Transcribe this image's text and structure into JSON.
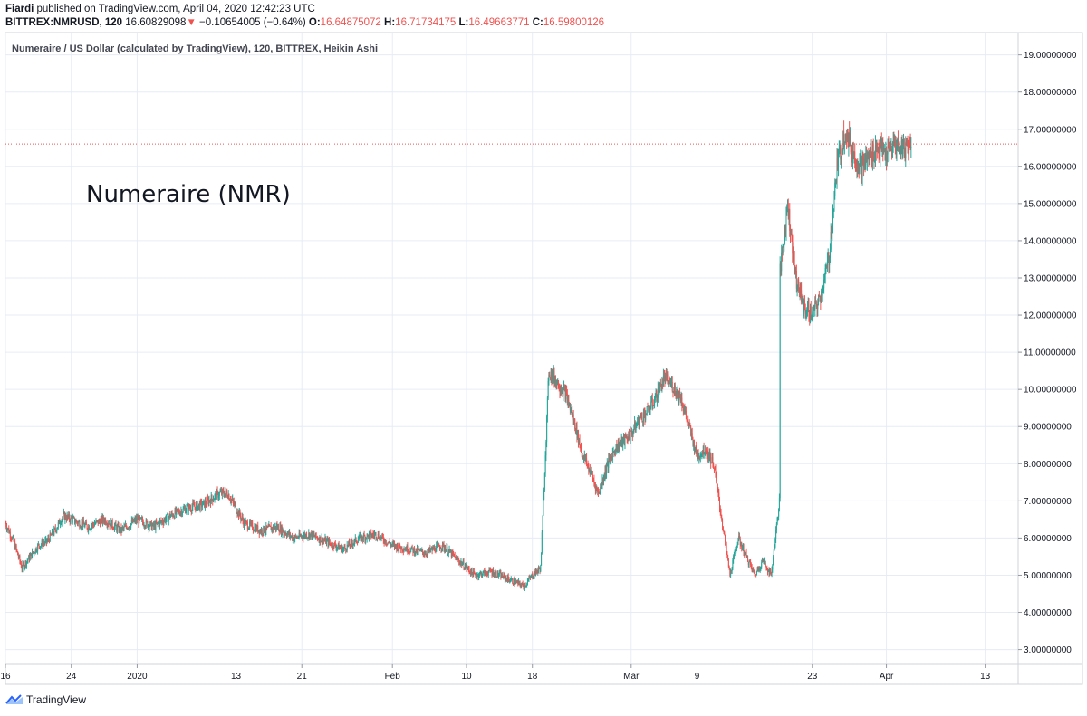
{
  "header": {
    "author": "Fiardi",
    "published": "published on TradingView.com, April 04, 2020 12:42:23 UTC",
    "symbol": "BITTREX:NMRUSD, 120",
    "last": "16.60829098",
    "change_arrow": "▼",
    "change": "−0.10654005 (−0.64%)",
    "o_label": "O:",
    "o_value": "16.64875072",
    "h_label": "H:",
    "h_value": "16.71734175",
    "l_label": "L:",
    "l_value": "16.49663771",
    "c_label": "C:",
    "c_value": "16.59800126"
  },
  "footer": {
    "brand": "TradingView",
    "logo_icon": "tradingview-logo-icon"
  },
  "colors": {
    "up": "#26a69a",
    "down": "#ef5350",
    "grid": "#e6ecf5",
    "priceline": "#ef5350"
  },
  "chart_data": {
    "type": "candlestick",
    "title": "Numeraire / US Dollar (calculated by TradingView), 120, BITTREX, Heikin Ashi",
    "annotation": "Numeraire (NMR)",
    "y_axis_position": "right",
    "ylim": [
      2.6,
      19.6
    ],
    "y_ticks": [
      {
        "label": "19.00000000",
        "value": 19
      },
      {
        "label": "18.00000000",
        "value": 18
      },
      {
        "label": "17.00000000",
        "value": 17
      },
      {
        "label": "16.00000000",
        "value": 16
      },
      {
        "label": "15.00000000",
        "value": 15
      },
      {
        "label": "14.00000000",
        "value": 14
      },
      {
        "label": "13.00000000",
        "value": 13
      },
      {
        "label": "12.00000000",
        "value": 12
      },
      {
        "label": "11.00000000",
        "value": 11
      },
      {
        "label": "10.00000000",
        "value": 10
      },
      {
        "label": "9.00000000",
        "value": 9
      },
      {
        "label": "8.00000000",
        "value": 8
      },
      {
        "label": "7.00000000",
        "value": 7
      },
      {
        "label": "6.00000000",
        "value": 6
      },
      {
        "label": "5.00000000",
        "value": 5
      },
      {
        "label": "4.00000000",
        "value": 4
      },
      {
        "label": "3.00000000",
        "value": 3
      }
    ],
    "x_ticks": [
      {
        "label": "16",
        "date": "2019-12-16"
      },
      {
        "label": "24",
        "date": "2019-12-24"
      },
      {
        "label": "2020",
        "date": "2020-01-01"
      },
      {
        "label": "13",
        "date": "2020-01-13"
      },
      {
        "label": "21",
        "date": "2020-01-21"
      },
      {
        "label": "Feb",
        "date": "2020-02-01"
      },
      {
        "label": "10",
        "date": "2020-02-10"
      },
      {
        "label": "18",
        "date": "2020-02-18"
      },
      {
        "label": "Mar",
        "date": "2020-03-01"
      },
      {
        "label": "9",
        "date": "2020-03-09"
      },
      {
        "label": "23",
        "date": "2020-03-23"
      },
      {
        "label": "Apr",
        "date": "2020-04-01"
      },
      {
        "label": "13",
        "date": "2020-04-13"
      }
    ],
    "x_range": [
      "2019-12-16",
      "2020-04-17"
    ],
    "grid": true,
    "last_price": 16.6,
    "close_path": [
      [
        "2019-12-16",
        6.4
      ],
      [
        "2019-12-17",
        5.9
      ],
      [
        "2019-12-18",
        5.2
      ],
      [
        "2019-12-19",
        5.5
      ],
      [
        "2019-12-20",
        5.8
      ],
      [
        "2019-12-21",
        5.9
      ],
      [
        "2019-12-22",
        6.2
      ],
      [
        "2019-12-23",
        6.6
      ],
      [
        "2019-12-24",
        6.5
      ],
      [
        "2019-12-26",
        6.3
      ],
      [
        "2019-12-28",
        6.5
      ],
      [
        "2019-12-30",
        6.2
      ],
      [
        "2020-01-01",
        6.5
      ],
      [
        "2020-01-03",
        6.3
      ],
      [
        "2020-01-05",
        6.6
      ],
      [
        "2020-01-07",
        6.8
      ],
      [
        "2020-01-09",
        6.9
      ],
      [
        "2020-01-11",
        7.2
      ],
      [
        "2020-01-12",
        7.2
      ],
      [
        "2020-01-14",
        6.4
      ],
      [
        "2020-01-16",
        6.2
      ],
      [
        "2020-01-18",
        6.3
      ],
      [
        "2020-01-20",
        6.0
      ],
      [
        "2020-01-22",
        6.1
      ],
      [
        "2020-01-24",
        5.9
      ],
      [
        "2020-01-26",
        5.7
      ],
      [
        "2020-01-28",
        6.0
      ],
      [
        "2020-01-30",
        6.1
      ],
      [
        "2020-02-01",
        5.8
      ],
      [
        "2020-02-03",
        5.7
      ],
      [
        "2020-02-05",
        5.6
      ],
      [
        "2020-02-07",
        5.8
      ],
      [
        "2020-02-09",
        5.4
      ],
      [
        "2020-02-11",
        5.0
      ],
      [
        "2020-02-13",
        5.1
      ],
      [
        "2020-02-15",
        4.9
      ],
      [
        "2020-02-17",
        4.7
      ],
      [
        "2020-02-18",
        5.0
      ],
      [
        "2020-02-19",
        5.2
      ],
      [
        "2020-02-20",
        10.5
      ],
      [
        "2020-02-21",
        10.2
      ],
      [
        "2020-02-22",
        9.9
      ],
      [
        "2020-02-23",
        9.2
      ],
      [
        "2020-02-24",
        8.3
      ],
      [
        "2020-02-25",
        7.8
      ],
      [
        "2020-02-26",
        7.2
      ],
      [
        "2020-02-27",
        7.9
      ],
      [
        "2020-02-28",
        8.4
      ],
      [
        "2020-03-01",
        8.8
      ],
      [
        "2020-03-02",
        9.2
      ],
      [
        "2020-03-03",
        9.4
      ],
      [
        "2020-03-04",
        9.8
      ],
      [
        "2020-03-05",
        10.3
      ],
      [
        "2020-03-06",
        10.1
      ],
      [
        "2020-03-07",
        9.8
      ],
      [
        "2020-03-08",
        9.0
      ],
      [
        "2020-03-09",
        8.2
      ],
      [
        "2020-03-10",
        8.4
      ],
      [
        "2020-03-11",
        8.0
      ],
      [
        "2020-03-12",
        6.5
      ],
      [
        "2020-03-13",
        5.0
      ],
      [
        "2020-03-14",
        6.0
      ],
      [
        "2020-03-15",
        5.5
      ],
      [
        "2020-03-16",
        5.0
      ],
      [
        "2020-03-17",
        5.4
      ],
      [
        "2020-03-18",
        5.0
      ],
      [
        "2020-03-19",
        7.0
      ],
      [
        "2020-03-19",
        13.0
      ],
      [
        "2020-03-20",
        15.0
      ],
      [
        "2020-03-21",
        13.0
      ],
      [
        "2020-03-22",
        12.2
      ],
      [
        "2020-03-23",
        12.0
      ],
      [
        "2020-03-24",
        12.5
      ],
      [
        "2020-03-25",
        13.5
      ],
      [
        "2020-03-26",
        16.0
      ],
      [
        "2020-03-27",
        17.0
      ],
      [
        "2020-03-28",
        16.3
      ],
      [
        "2020-03-29",
        16.0
      ],
      [
        "2020-03-30",
        16.3
      ],
      [
        "2020-03-31",
        16.5
      ],
      [
        "2020-04-01",
        16.3
      ],
      [
        "2020-04-02",
        16.6
      ],
      [
        "2020-04-03",
        16.5
      ],
      [
        "2020-04-04",
        16.6
      ]
    ]
  }
}
